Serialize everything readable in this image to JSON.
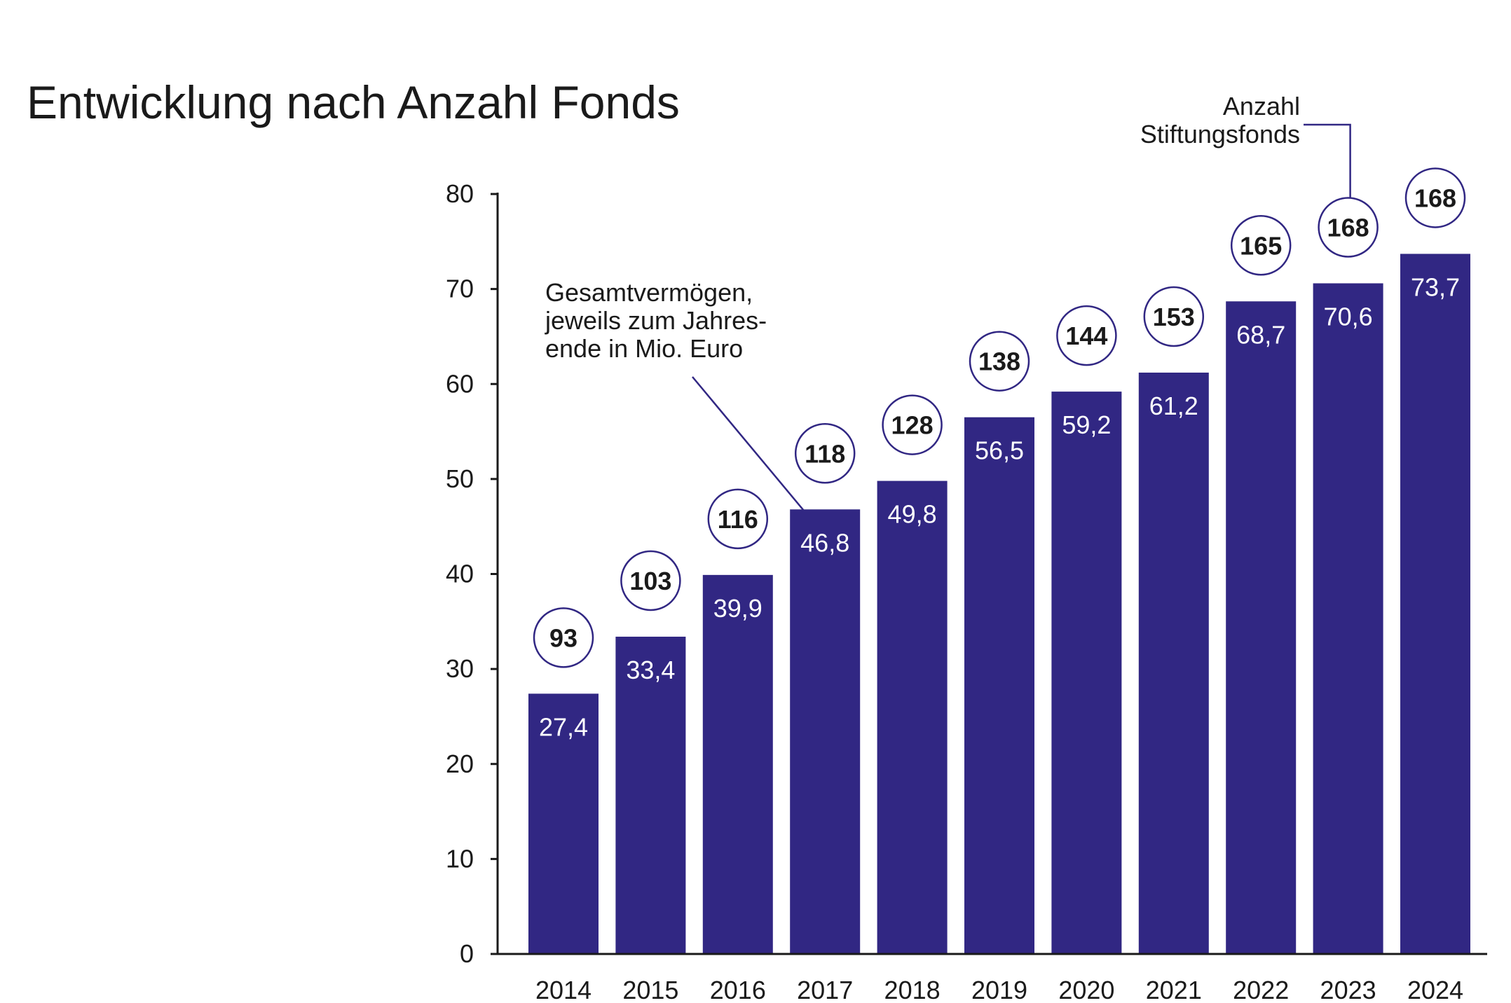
{
  "title": "Entwicklung nach Anzahl Fonds",
  "annotations": {
    "assets_note": [
      "Gesamtvermögen,",
      "jeweils zum Jahres-",
      "ende in Mio. Euro"
    ],
    "funds_note": [
      "Anzahl",
      "Stiftungsfonds"
    ]
  },
  "colors": {
    "bar": "#312783",
    "axis": "#1a1a1a",
    "bubble_stroke": "#312783",
    "label_in_bar": "#ffffff"
  },
  "chart_data": {
    "type": "bar",
    "categories": [
      "2014",
      "2015",
      "2016",
      "2017",
      "2018",
      "2019",
      "2020",
      "2021",
      "2022",
      "2023",
      "2024"
    ],
    "series": [
      {
        "values": [
          27.4,
          33.4,
          39.9,
          46.8,
          49.8,
          56.5,
          59.2,
          61.2,
          68.7,
          70.6,
          73.7
        ],
        "labels": [
          "27,4",
          "33,4",
          "39,9",
          "46,8",
          "49,8",
          "56,5",
          "59,2",
          "61,2",
          "68,7",
          "70,6",
          "73,7"
        ]
      },
      {
        "values": [
          93,
          103,
          116,
          118,
          128,
          138,
          144,
          153,
          165,
          168,
          168
        ]
      }
    ],
    "ylim": [
      0,
      80
    ],
    "yticks": [
      0,
      10,
      20,
      30,
      40,
      50,
      60,
      70,
      80
    ],
    "xlabel": "",
    "ylabel": "",
    "grid": false,
    "legend": "none"
  }
}
